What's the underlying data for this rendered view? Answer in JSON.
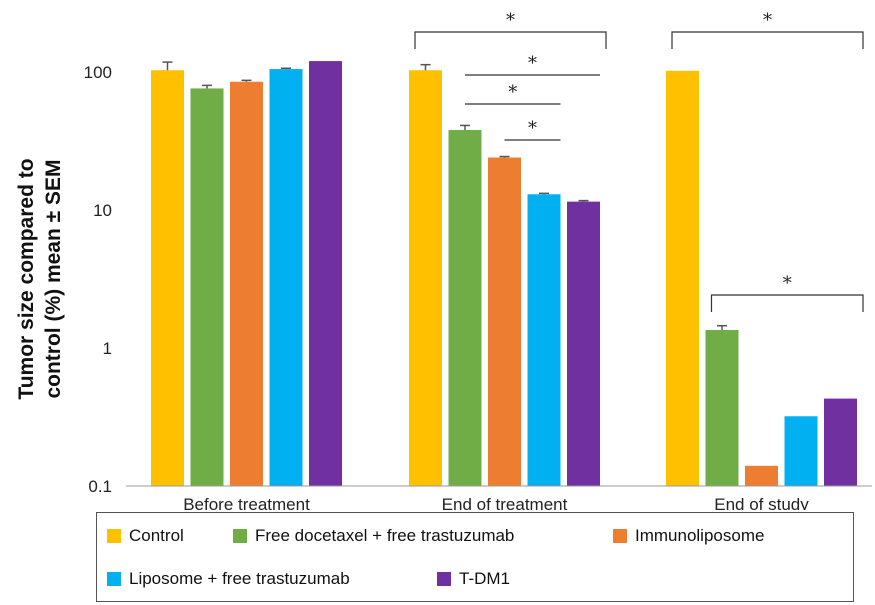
{
  "chart_data": {
    "type": "bar",
    "ylabel": [
      "Tumor size compared to",
      "control (%) mean ± SEM"
    ],
    "xlabel": "",
    "yscale": "log",
    "ylim": [
      0.1,
      200
    ],
    "yticks": [
      {
        "value": 0.1,
        "label": "0.1"
      },
      {
        "value": 1,
        "label": "1"
      },
      {
        "value": 10,
        "label": "10"
      },
      {
        "value": 100,
        "label": "100"
      }
    ],
    "categories": [
      "Before treatment",
      "End of treatment",
      "End of study"
    ],
    "series": [
      {
        "name": "Control",
        "color": "#FFC000",
        "values": [
          103,
          103,
          102
        ],
        "errors": [
          15,
          10,
          0
        ]
      },
      {
        "name": "Free docetaxel + free trastuzumab",
        "color": "#70AD47",
        "values": [
          76,
          38,
          1.35
        ],
        "errors": [
          4,
          3,
          0.1
        ]
      },
      {
        "name": "Immunoliposome",
        "color": "#ED7D31",
        "values": [
          85,
          24,
          0.14
        ],
        "errors": [
          2,
          0.4,
          0
        ]
      },
      {
        "name": "Liposome + free trastuzumab",
        "color": "#00B0F0",
        "values": [
          105,
          13,
          0.32
        ],
        "errors": [
          1.5,
          0.2,
          0
        ]
      },
      {
        "name": "T-DM1",
        "color": "#7030A0",
        "values": [
          120,
          11.5,
          0.43
        ],
        "errors": [
          0,
          0.2,
          0
        ]
      }
    ],
    "annotations": [
      {
        "type": "bracket",
        "group": 1,
        "from_series": 0,
        "to_series": 4,
        "label": "*"
      },
      {
        "type": "line",
        "group": 1,
        "from_series": 1,
        "to_series": 4,
        "label": "*"
      },
      {
        "type": "line",
        "group": 1,
        "from_series": 1,
        "to_series": 3,
        "label": "*"
      },
      {
        "type": "line",
        "group": 1,
        "from_series": 2,
        "to_series": 3,
        "label": "*"
      },
      {
        "type": "bracket",
        "group": 2,
        "from_series": 0,
        "to_series": 4,
        "label": "*"
      },
      {
        "type": "bracket",
        "group": 2,
        "from_series": 1,
        "to_series": 4,
        "label": "*"
      }
    ],
    "grid": false,
    "legend_position": "bottom"
  },
  "colors": {
    "axis": "#999999",
    "text": "#222222"
  }
}
